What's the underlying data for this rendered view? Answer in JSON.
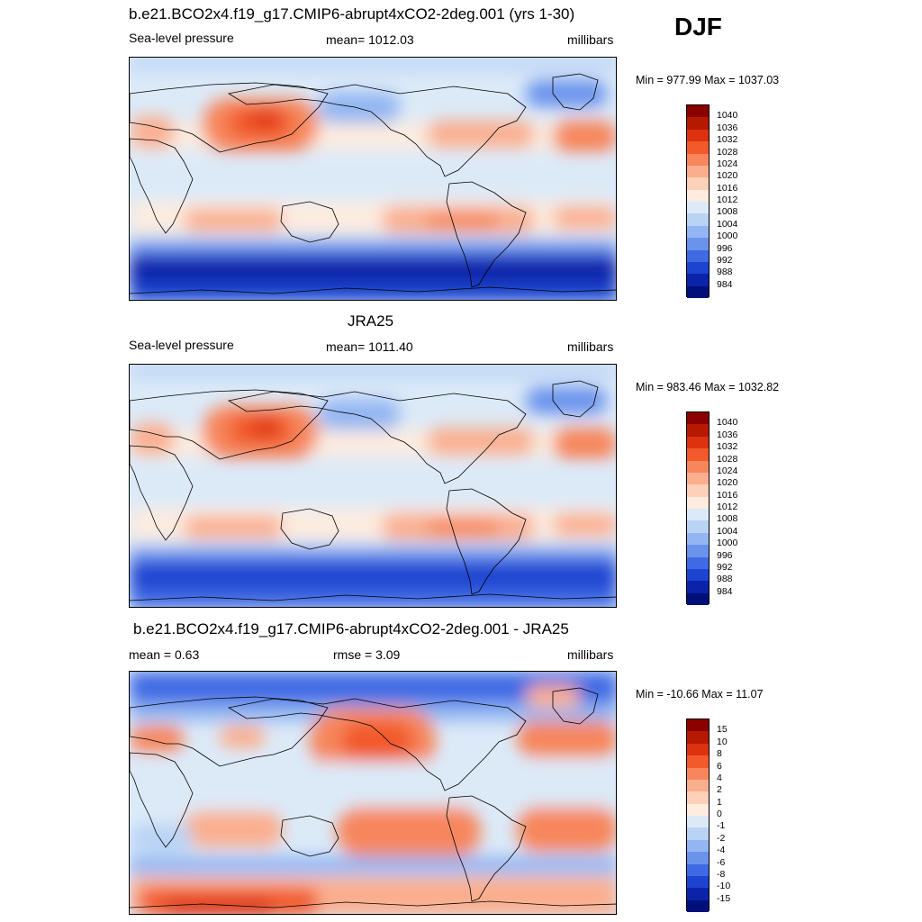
{
  "season": "DJF",
  "panels": [
    {
      "title": "b.e21.BCO2x4.f19_g17.CMIP6-abrupt4xCO2-2deg.001 (yrs 1-30)",
      "left_label": "Sea-level pressure",
      "center_label": "mean= 1012.03",
      "right_label": "millibars",
      "minmax": "Min = 977.99 Max = 1037.03",
      "scale": "abs"
    },
    {
      "title": "JRA25",
      "left_label": "Sea-level pressure",
      "center_label": "mean= 1011.40",
      "right_label": "millibars",
      "minmax": "Min = 983.46 Max = 1032.82",
      "scale": "abs"
    },
    {
      "title": "b.e21.BCO2x4.f19_g17.CMIP6-abrupt4xCO2-2deg.001 - JRA25",
      "left_label": "mean =   0.63",
      "center_label": "rmse =   3.09",
      "right_label": "millibars",
      "minmax": "Min = -10.66 Max =  11.07",
      "scale": "diff"
    }
  ],
  "chart_data": {
    "type": "heatmap",
    "colorbars": {
      "abs": {
        "labels": [
          "1040",
          "1036",
          "1032",
          "1028",
          "1024",
          "1020",
          "1016",
          "1012",
          "1008",
          "1004",
          "1000",
          "996",
          "992",
          "988",
          "984"
        ],
        "colors": [
          "#8b0000",
          "#b51a00",
          "#dc3210",
          "#f25a2c",
          "#f7865c",
          "#fbae8e",
          "#fdd0b8",
          "#fdecdf",
          "#dceaf8",
          "#b9d3f5",
          "#93b6f2",
          "#6a93ec",
          "#3f6ae4",
          "#1c44d0",
          "#0b23a8",
          "#00107a"
        ]
      },
      "diff": {
        "labels": [
          "15",
          "10",
          "8",
          "6",
          "4",
          "2",
          "1",
          "0",
          "-1",
          "-2",
          "-4",
          "-6",
          "-8",
          "-10",
          "-15"
        ],
        "colors": [
          "#8b0000",
          "#b51a00",
          "#dc3210",
          "#f25a2c",
          "#f7865c",
          "#fbae8e",
          "#fdd0b8",
          "#fdecdf",
          "#dceaf8",
          "#b9d3f5",
          "#93b6f2",
          "#6a93ec",
          "#3f6ae4",
          "#1c44d0",
          "#0b23a8",
          "#00107a"
        ]
      }
    }
  }
}
